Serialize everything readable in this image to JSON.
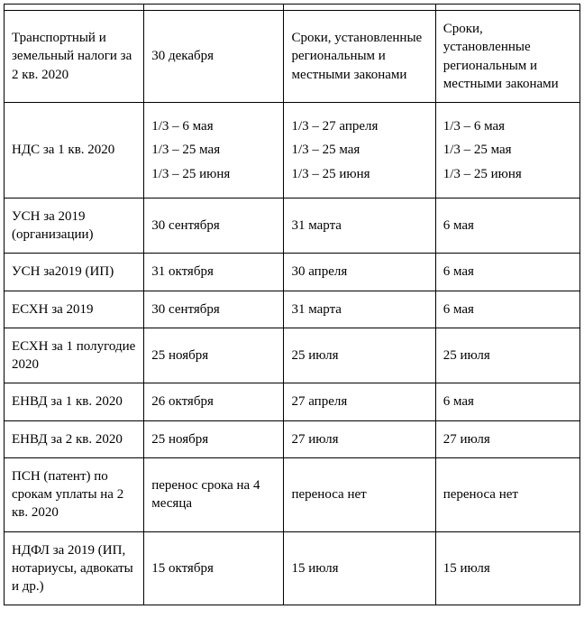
{
  "table": {
    "rows": [
      {
        "c0": "Транспортный и земельный налоги за 2 кв. 2020",
        "c1": "30 декабря",
        "c2": "Сроки, установленные региональным и местными законами",
        "c3": "Сроки, установленные региональным и местными законами"
      },
      {
        "c0": "НДС за 1 кв. 2020",
        "c1_lines": [
          "1/3 – 6 мая",
          "1/3 – 25 мая",
          "1/3 – 25 июня"
        ],
        "c2_lines": [
          "1/3 – 27 апреля",
          "1/3 – 25 мая",
          "1/3 – 25 июня"
        ],
        "c3_lines": [
          "1/3 – 6 мая",
          "1/3 – 25 мая",
          "1/3 – 25 июня"
        ]
      },
      {
        "c0": "УСН за 2019 (организации)",
        "c1": "30 сентября",
        "c2": "31 марта",
        "c3": "6 мая"
      },
      {
        "c0": "УСН за2019 (ИП)",
        "c1": "31 октября",
        "c2": "30 апреля",
        "c3": "6 мая"
      },
      {
        "c0": "ЕСХН за 2019",
        "c1": "30 сентября",
        "c2": "31 марта",
        "c3": "6 мая"
      },
      {
        "c0": "ЕСХН за 1 полугодие 2020",
        "c1": "25 ноября",
        "c2": "25 июля",
        "c3": "25 июля"
      },
      {
        "c0": "ЕНВД за 1 кв. 2020",
        "c1": "26 октября",
        "c2": "27 апреля",
        "c3": "6 мая"
      },
      {
        "c0": "ЕНВД за 2 кв. 2020",
        "c1": "25 ноября",
        "c2": "27 июля",
        "c3": "27 июля"
      },
      {
        "c0": "ПСН (патент) по срокам уплаты на 2 кв. 2020",
        "c1": "перенос срока на 4 месяца",
        "c2": "переноса нет",
        "c3": "переноса нет"
      },
      {
        "c0": "НДФЛ за 2019 (ИП, нотариусы, адвокаты и др.)",
        "c1": "15 октября",
        "c2": "15 июля",
        "c3": "15 июля"
      }
    ],
    "border_color": "#000000",
    "text_color": "#000000",
    "background_color": "#ffffff",
    "font_family": "Times New Roman",
    "font_size_pt": 11
  }
}
